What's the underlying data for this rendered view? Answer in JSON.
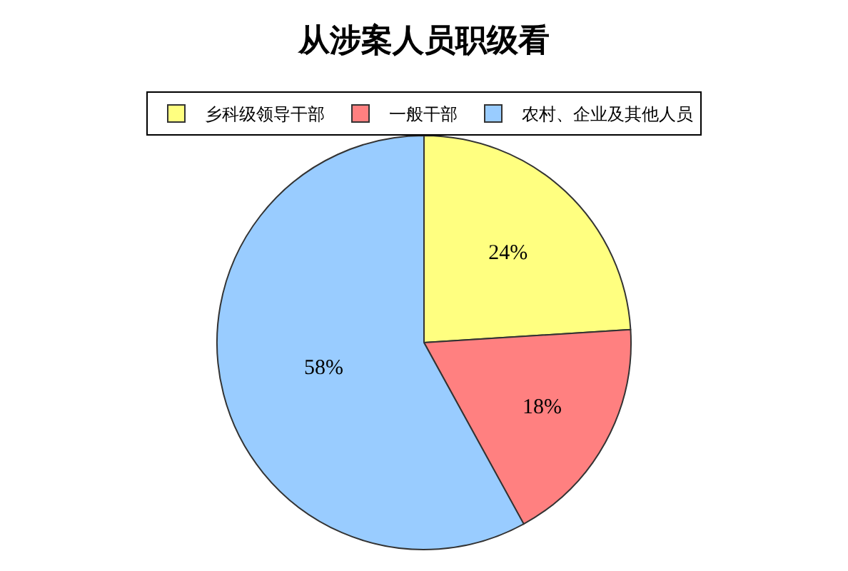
{
  "chart_data": {
    "type": "pie",
    "title": "从涉案人员职级看",
    "categories": [
      "乡科级领导干部",
      "一般干部",
      "农村、企业及其他人员"
    ],
    "values": [
      24,
      18,
      58
    ],
    "value_labels": [
      "24%",
      "18%",
      "58%"
    ],
    "colors": [
      "#ffff80",
      "#ff8080",
      "#99ccff"
    ],
    "legend": "top"
  }
}
